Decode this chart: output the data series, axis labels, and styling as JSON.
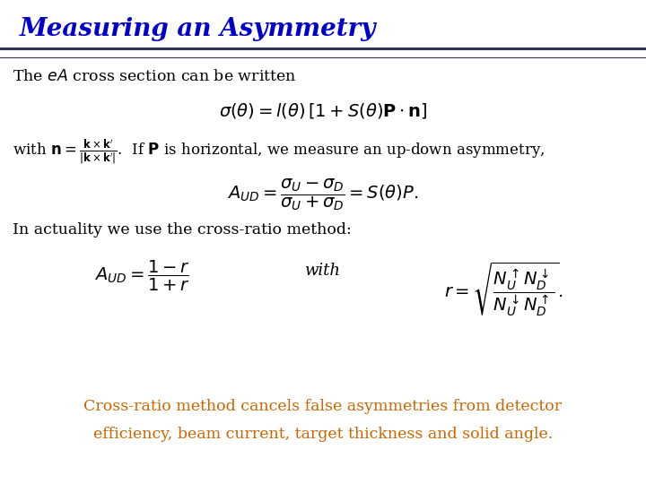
{
  "title": "Measuring an Asymmetry",
  "title_color": "#0000CC",
  "title_fontsize": 20,
  "bg_color": "#FFFFFF",
  "text_color": "#000000",
  "highlight_color": "#CC6600",
  "line1": "The $eA$ cross section can be written",
  "line3": "In actuality we use the cross-ratio method:",
  "eq3b": "with",
  "caption_line1": "Cross-ratio method cancels false asymmetries from detector",
  "caption_line2": "efficiency, beam current, target thickness and solid angle.",
  "line_color": "#333355"
}
